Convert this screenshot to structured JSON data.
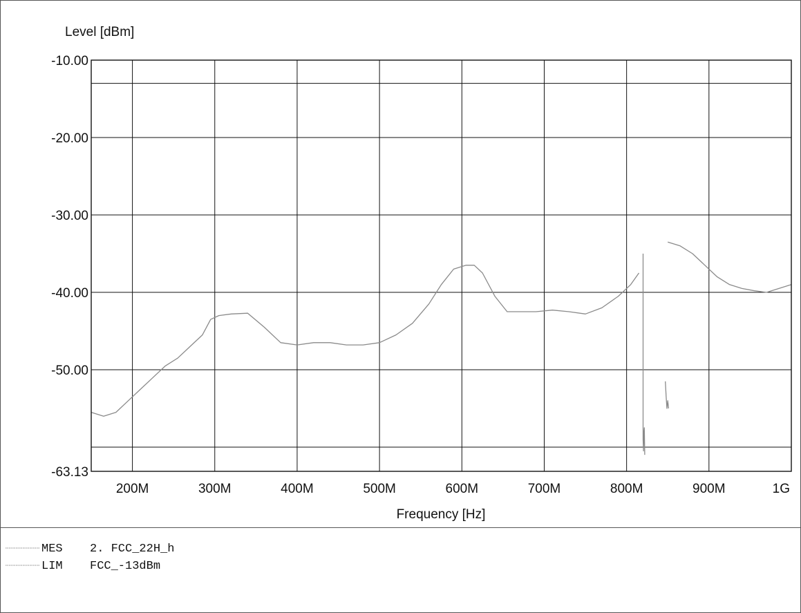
{
  "chart_data": {
    "type": "line",
    "ylabel": "Level [dBm]",
    "xlabel": "Frequency [Hz]",
    "xlim": [
      150000000,
      1000000000
    ],
    "ylim": [
      -63.13,
      -10.0
    ],
    "x_ticks": [
      {
        "value": 200000000,
        "label": "200M"
      },
      {
        "value": 300000000,
        "label": "300M"
      },
      {
        "value": 400000000,
        "label": "400M"
      },
      {
        "value": 500000000,
        "label": "500M"
      },
      {
        "value": 600000000,
        "label": "600M"
      },
      {
        "value": 700000000,
        "label": "700M"
      },
      {
        "value": 800000000,
        "label": "800M"
      },
      {
        "value": 900000000,
        "label": "900M"
      },
      {
        "value": 1000000000,
        "label": "1G"
      }
    ],
    "y_ticks": [
      {
        "value": -10.0,
        "label": "-10.00"
      },
      {
        "value": -20.0,
        "label": "-20.00"
      },
      {
        "value": -30.0,
        "label": "-30.00"
      },
      {
        "value": -40.0,
        "label": "-40.00"
      },
      {
        "value": -50.0,
        "label": "-50.00"
      },
      {
        "value": -63.13,
        "label": "-63.13"
      }
    ],
    "extra_gridlines_y": [
      -13.0,
      -60.0
    ],
    "grid": true,
    "colors": {
      "measurement": "#8a8a8a",
      "grid": "#111111"
    },
    "series": [
      {
        "name": "MES",
        "x": [
          150000000,
          165000000,
          180000000,
          195000000,
          210000000,
          225000000,
          240000000,
          255000000,
          270000000,
          285000000,
          295000000,
          305000000,
          320000000,
          340000000,
          360000000,
          380000000,
          400000000,
          420000000,
          440000000,
          460000000,
          480000000,
          500000000,
          520000000,
          540000000,
          560000000,
          575000000,
          590000000,
          605000000,
          615000000,
          625000000,
          640000000,
          655000000,
          670000000,
          690000000,
          710000000,
          730000000,
          750000000,
          770000000,
          790000000,
          805000000,
          815000000
        ],
        "y": [
          -55.5,
          -56.0,
          -55.5,
          -54.0,
          -52.5,
          -51.0,
          -49.5,
          -48.5,
          -47.0,
          -45.5,
          -43.5,
          -43.0,
          -42.8,
          -42.7,
          -44.5,
          -46.5,
          -46.8,
          -46.5,
          -46.5,
          -46.8,
          -46.8,
          -46.5,
          -45.5,
          -44.0,
          -41.5,
          -39.0,
          -37.0,
          -36.5,
          -36.5,
          -37.5,
          -40.5,
          -42.5,
          -42.5,
          -42.5,
          -42.3,
          -42.5,
          -42.8,
          -42.0,
          -40.5,
          -39.0,
          -37.5
        ]
      },
      {
        "name": "MES",
        "x": [
          850000000,
          865000000,
          880000000,
          895000000,
          910000000,
          925000000,
          940000000,
          955000000,
          970000000,
          985000000,
          1000000000
        ],
        "y": [
          -33.5,
          -34.0,
          -35.0,
          -36.5,
          -38.0,
          -39.0,
          -39.5,
          -39.8,
          -40.0,
          -39.5,
          -39.0
        ]
      },
      {
        "name": "MES",
        "x": [
          820000000,
          820000000,
          820500000,
          821000000,
          821500000,
          822000000
        ],
        "y": [
          -35.0,
          -59.0,
          -60.5,
          -58.0,
          -57.5,
          -61.0
        ]
      },
      {
        "name": "MES",
        "x": [
          847000000,
          848000000,
          849000000,
          850000000,
          851000000
        ],
        "y": [
          -51.5,
          -53.5,
          -55.0,
          -54.0,
          -55.0
        ]
      }
    ]
  },
  "legend": [
    {
      "tag": "MES",
      "text": "2. FCC_22H_h"
    },
    {
      "tag": "LIM",
      "text": "FCC_-13dBm"
    }
  ]
}
